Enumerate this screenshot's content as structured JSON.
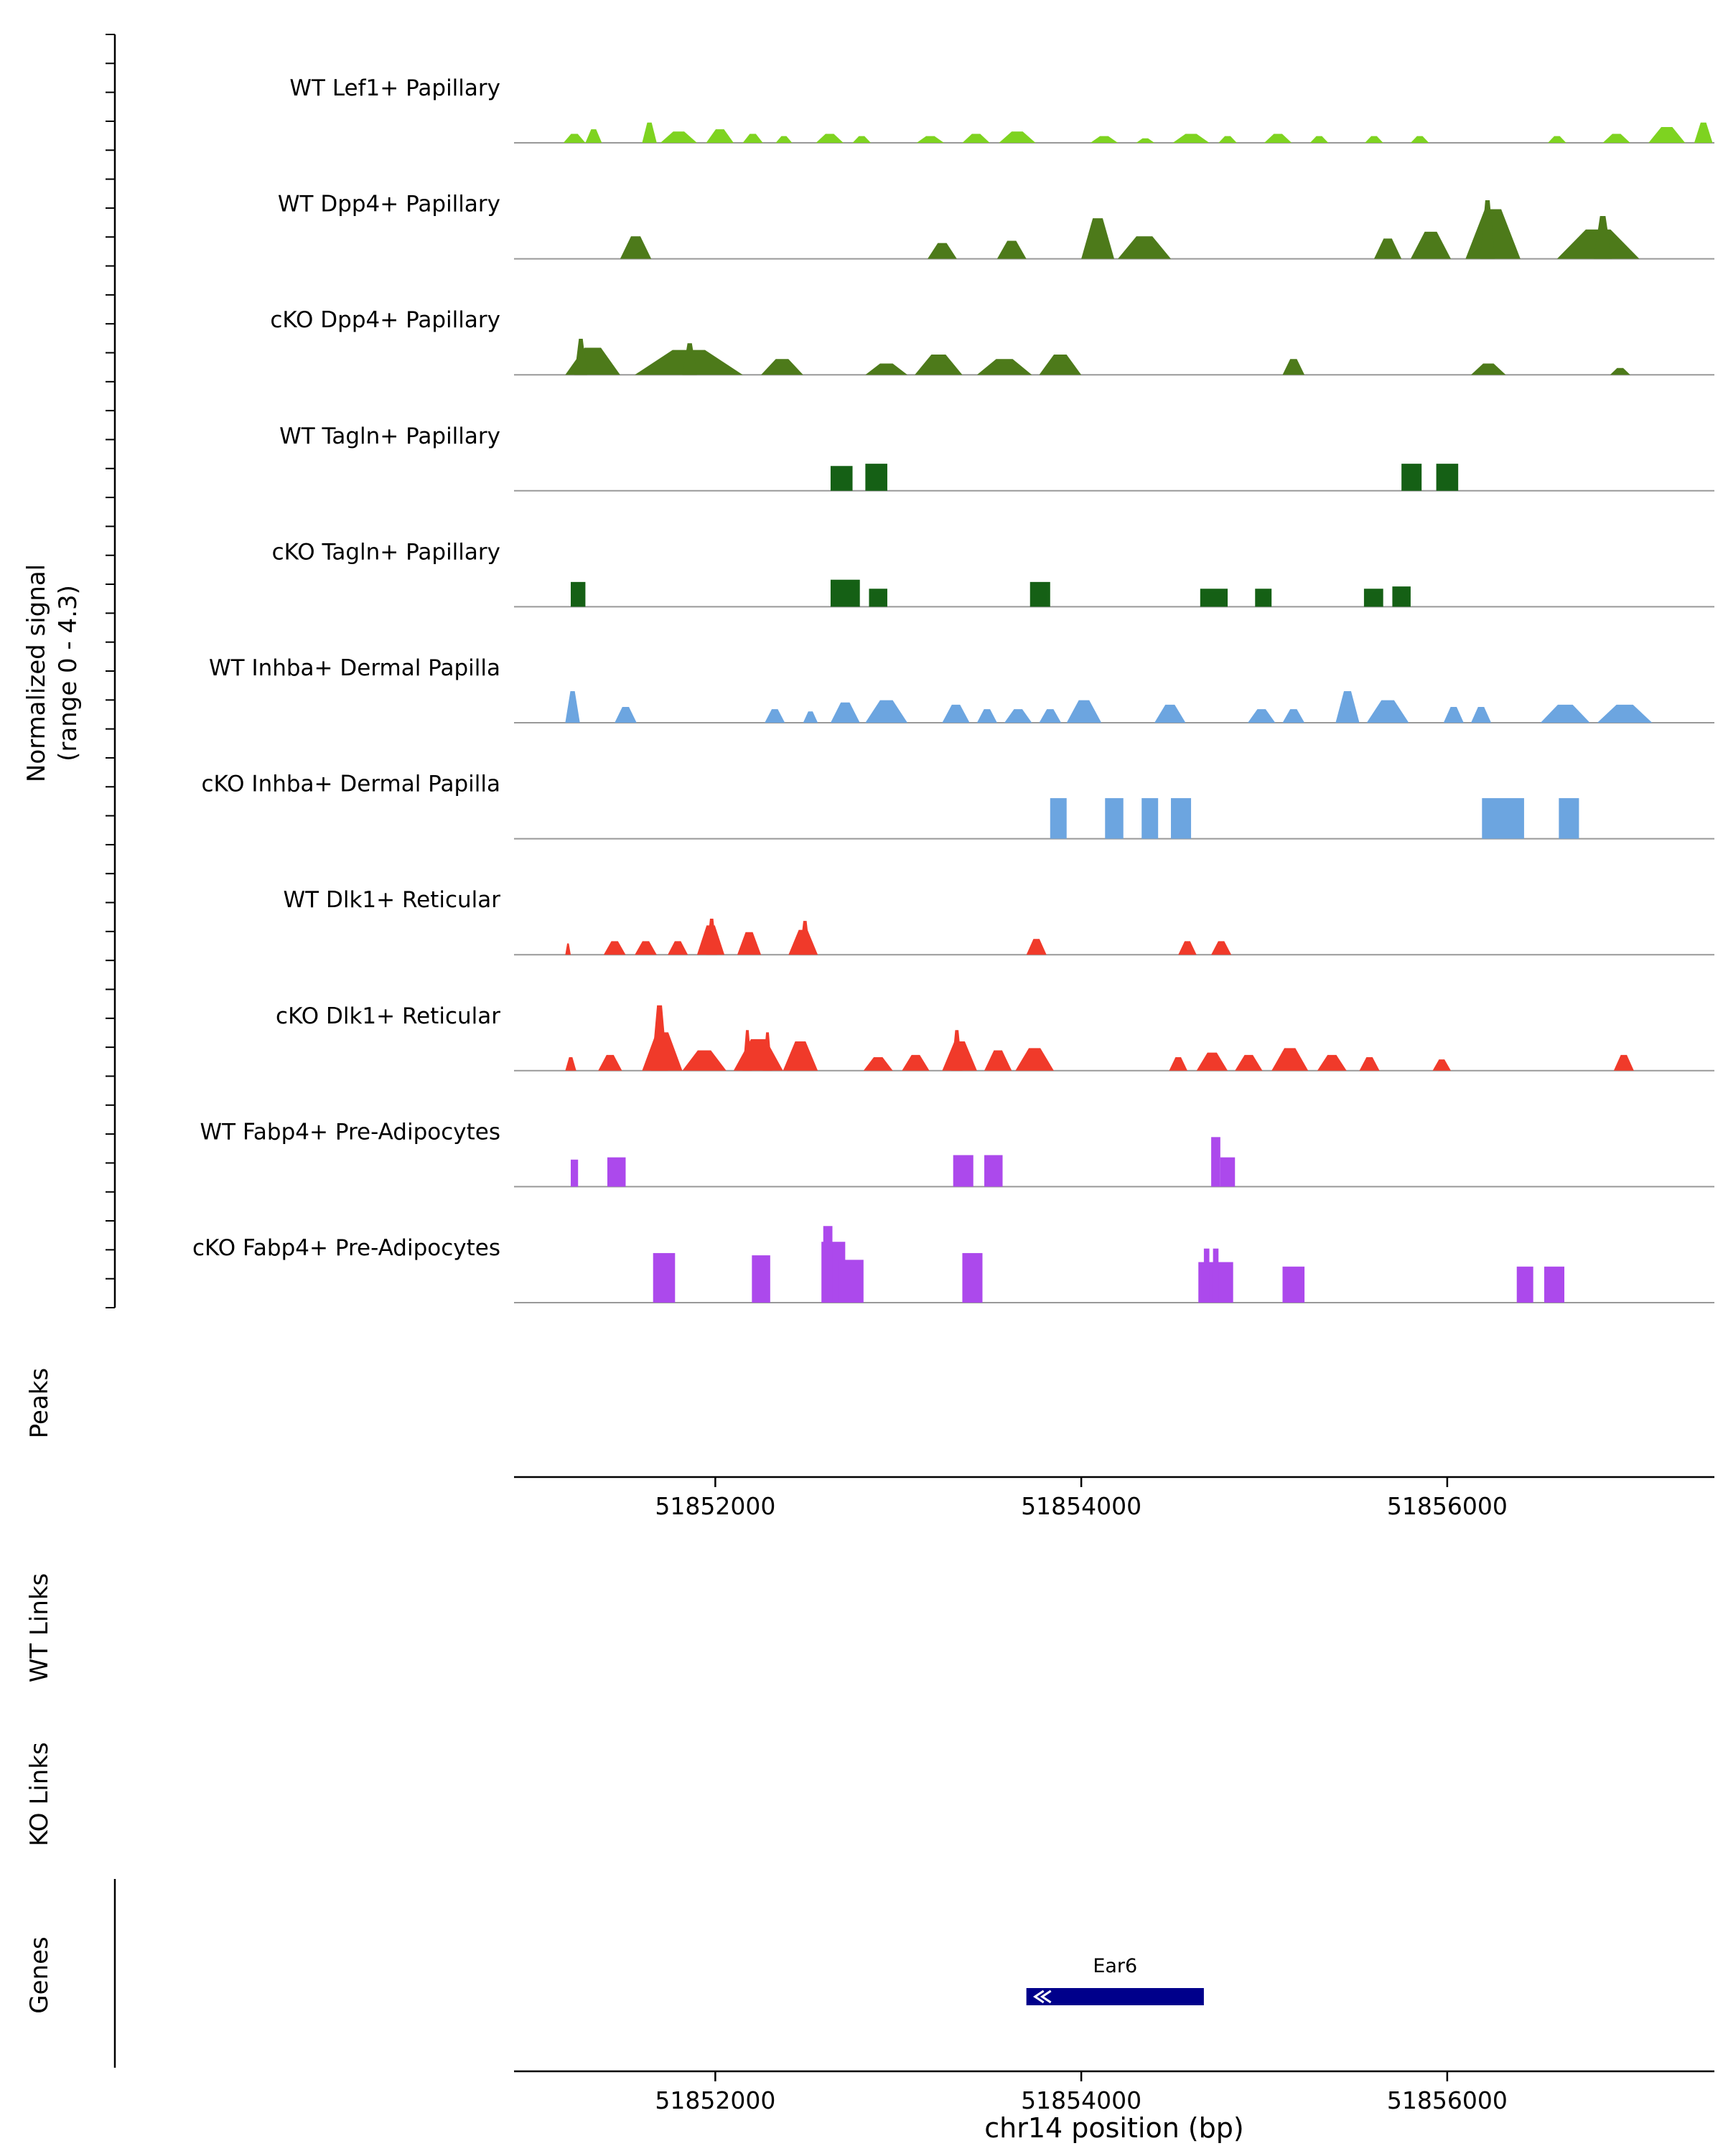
{
  "figure": {
    "y_axis_label_line1": "Normalized signal",
    "y_axis_label_line2": "(range 0 - 4.3)",
    "section_labels": {
      "peaks": "Peaks",
      "wt_links": "WT Links",
      "ko_links": "KO Links",
      "genes": "Genes"
    },
    "x_axis": {
      "label": "chr14 position (bp)",
      "tick_labels": [
        "51852000",
        "51854000",
        "51856000"
      ],
      "tick_values": [
        51852000,
        51854000,
        51856000
      ]
    }
  },
  "chart_data": {
    "type": "area",
    "title": "",
    "xlabel": "chr14 position (bp)",
    "x_domain_bp": [
      51850900,
      51857460
    ],
    "x_ticks": [
      51852000,
      51854000,
      51856000
    ],
    "signal_range": [
      0,
      4.3
    ],
    "tracks": [
      {
        "label": "WT Lef1+ Papillary",
        "color": "#7ED320",
        "style": "mound",
        "peaks": [
          [
            51851170,
            51851290,
            0.4
          ],
          [
            51851290,
            51851380,
            0.6
          ],
          [
            51851600,
            51851680,
            0.9
          ],
          [
            51851700,
            51851900,
            0.5
          ],
          [
            51851950,
            51852100,
            0.6
          ],
          [
            51852150,
            51852260,
            0.4
          ],
          [
            51852330,
            51852420,
            0.3
          ],
          [
            51852550,
            51852700,
            0.4
          ],
          [
            51852750,
            51852850,
            0.3
          ],
          [
            51853100,
            51853250,
            0.3
          ],
          [
            51853350,
            51853500,
            0.4
          ],
          [
            51853550,
            51853750,
            0.5
          ],
          [
            51854050,
            51854200,
            0.3
          ],
          [
            51854300,
            51854400,
            0.2
          ],
          [
            51854500,
            51854700,
            0.4
          ],
          [
            51854750,
            51854850,
            0.3
          ],
          [
            51855000,
            51855150,
            0.4
          ],
          [
            51855250,
            51855350,
            0.3
          ],
          [
            51855550,
            51855650,
            0.3
          ],
          [
            51855800,
            51855900,
            0.3
          ],
          [
            51856550,
            51856650,
            0.3
          ],
          [
            51856850,
            51857000,
            0.4
          ],
          [
            51857100,
            51857300,
            0.7
          ],
          [
            51857350,
            51857450,
            0.9
          ]
        ]
      },
      {
        "label": "WT Dpp4+ Papillary",
        "color": "#4D7A1A",
        "style": "mound",
        "peaks": [
          [
            51851480,
            51851650,
            1.0
          ],
          [
            51853160,
            51853320,
            0.7
          ],
          [
            51853540,
            51853700,
            0.8
          ],
          [
            51854000,
            51854180,
            1.8
          ],
          [
            51854200,
            51854490,
            1.0
          ],
          [
            51855600,
            51855750,
            0.9
          ],
          [
            51855800,
            51856020,
            1.2
          ],
          [
            51856100,
            51856400,
            2.2
          ],
          [
            51856180,
            51856260,
            2.6
          ],
          [
            51856600,
            51857050,
            1.3
          ],
          [
            51856800,
            51856900,
            1.9
          ]
        ]
      },
      {
        "label": "cKO Dpp4+ Papillary",
        "color": "#4D7A1A",
        "style": "mound",
        "peaks": [
          [
            51851180,
            51851480,
            1.2
          ],
          [
            51851230,
            51851300,
            1.6
          ],
          [
            51851560,
            51852150,
            1.1
          ],
          [
            51851820,
            51851900,
            1.4
          ],
          [
            51852250,
            51852480,
            0.7
          ],
          [
            51852820,
            51853050,
            0.5
          ],
          [
            51853090,
            51853350,
            0.9
          ],
          [
            51853430,
            51853730,
            0.7
          ],
          [
            51853770,
            51854000,
            0.9
          ],
          [
            51855100,
            51855220,
            0.7
          ],
          [
            51856130,
            51856320,
            0.5
          ],
          [
            51856890,
            51857000,
            0.3
          ]
        ]
      },
      {
        "label": "WT Tagln+ Papillary",
        "color": "#156015",
        "style": "block",
        "peaks": [
          [
            51852630,
            51852750,
            1.1
          ],
          [
            51852820,
            51852940,
            1.2
          ],
          [
            51855750,
            51855860,
            1.2
          ],
          [
            51855940,
            51856060,
            1.2
          ]
        ]
      },
      {
        "label": "cKO Tagln+ Papillary",
        "color": "#156015",
        "style": "block",
        "peaks": [
          [
            51851210,
            51851290,
            1.1
          ],
          [
            51852630,
            51852790,
            1.2
          ],
          [
            51852840,
            51852940,
            0.8
          ],
          [
            51853720,
            51853830,
            1.1
          ],
          [
            51854650,
            51854800,
            0.8
          ],
          [
            51854950,
            51855040,
            0.8
          ],
          [
            51855545,
            51855650,
            0.8
          ],
          [
            51855700,
            51855800,
            0.9
          ]
        ]
      },
      {
        "label": "WT Inhba+ Dermal Papilla",
        "color": "#6CA5E0",
        "style": "mound",
        "peaks": [
          [
            51851180,
            51851260,
            1.4
          ],
          [
            51851450,
            51851570,
            0.7
          ],
          [
            51852270,
            51852380,
            0.6
          ],
          [
            51852480,
            51852560,
            0.5
          ],
          [
            51852630,
            51852790,
            0.9
          ],
          [
            51852820,
            51853050,
            1.0
          ],
          [
            51853240,
            51853390,
            0.8
          ],
          [
            51853430,
            51853540,
            0.6
          ],
          [
            51853580,
            51853730,
            0.6
          ],
          [
            51853770,
            51853890,
            0.6
          ],
          [
            51853920,
            51854110,
            1.0
          ],
          [
            51854400,
            51854570,
            0.8
          ],
          [
            51854910,
            51855060,
            0.6
          ],
          [
            51855100,
            51855220,
            0.6
          ],
          [
            51855390,
            51855520,
            1.4
          ],
          [
            51855560,
            51855790,
            1.0
          ],
          [
            51855980,
            51856090,
            0.7
          ],
          [
            51856130,
            51856240,
            0.7
          ],
          [
            51856510,
            51856780,
            0.8
          ],
          [
            51856820,
            51857120,
            0.8
          ]
        ]
      },
      {
        "label": "cKO Inhba+ Dermal Papilla",
        "color": "#6CA5E0",
        "style": "block",
        "peaks": [
          [
            51853830,
            51853920,
            1.8
          ],
          [
            51854130,
            51854230,
            1.8
          ],
          [
            51854330,
            51854420,
            1.8
          ],
          [
            51854490,
            51854600,
            1.8
          ],
          [
            51856190,
            51856420,
            1.8
          ],
          [
            51856610,
            51856720,
            1.8
          ]
        ]
      },
      {
        "label": "WT Dlk1+ Reticular",
        "color": "#F03A2A",
        "style": "mound",
        "peaks": [
          [
            51851180,
            51851210,
            0.5
          ],
          [
            51851390,
            51851510,
            0.6
          ],
          [
            51851560,
            51851680,
            0.6
          ],
          [
            51851740,
            51851850,
            0.6
          ],
          [
            51851900,
            51852050,
            1.3
          ],
          [
            51851950,
            51852010,
            1.6
          ],
          [
            51852120,
            51852250,
            1.0
          ],
          [
            51852400,
            51852560,
            1.1
          ],
          [
            51852460,
            51852520,
            1.5
          ],
          [
            51853700,
            51853810,
            0.7
          ],
          [
            51854530,
            51854630,
            0.6
          ],
          [
            51854710,
            51854820,
            0.6
          ]
        ]
      },
      {
        "label": "cKO Dlk1+ Reticular",
        "color": "#F03A2A",
        "style": "mound",
        "peaks": [
          [
            51851180,
            51851240,
            0.6
          ],
          [
            51851360,
            51851490,
            0.7
          ],
          [
            51851600,
            51851820,
            1.7
          ],
          [
            51851650,
            51851740,
            2.9
          ],
          [
            51851820,
            51852060,
            0.9
          ],
          [
            51852100,
            51852370,
            1.4
          ],
          [
            51852150,
            51852200,
            1.8
          ],
          [
            51852260,
            51852310,
            1.7
          ],
          [
            51852370,
            51852560,
            1.3
          ],
          [
            51852810,
            51852970,
            0.6
          ],
          [
            51853020,
            51853170,
            0.7
          ],
          [
            51853240,
            51853430,
            1.3
          ],
          [
            51853290,
            51853350,
            1.8
          ],
          [
            51853470,
            51853620,
            0.9
          ],
          [
            51853640,
            51853850,
            1.0
          ],
          [
            51854480,
            51854580,
            0.6
          ],
          [
            51854630,
            51854800,
            0.8
          ],
          [
            51854840,
            51854990,
            0.7
          ],
          [
            51855040,
            51855240,
            1.0
          ],
          [
            51855290,
            51855450,
            0.7
          ],
          [
            51855520,
            51855630,
            0.6
          ],
          [
            51855920,
            51856020,
            0.5
          ],
          [
            51856910,
            51857020,
            0.7
          ]
        ]
      },
      {
        "label": "WT Fabp4+ Pre-Adipocytes",
        "color": "#AC49EC",
        "style": "block",
        "peaks": [
          [
            51851210,
            51851250,
            1.2
          ],
          [
            51851410,
            51851510,
            1.3
          ],
          [
            51853300,
            51853410,
            1.4
          ],
          [
            51853470,
            51853570,
            1.4
          ],
          [
            51854710,
            51854760,
            2.2
          ],
          [
            51854760,
            51854840,
            1.3
          ]
        ]
      },
      {
        "label": "cKO Fabp4+ Pre-Adipocytes",
        "color": "#AC49EC",
        "style": "block",
        "peaks": [
          [
            51851660,
            51851780,
            2.2
          ],
          [
            51852200,
            51852300,
            2.1
          ],
          [
            51852580,
            51852710,
            2.7
          ],
          [
            51852590,
            51852640,
            3.4
          ],
          [
            51852670,
            51852810,
            1.9
          ],
          [
            51853350,
            51853460,
            2.2
          ],
          [
            51854640,
            51854830,
            1.8
          ],
          [
            51854670,
            51854700,
            2.4
          ],
          [
            51854720,
            51854750,
            2.4
          ],
          [
            51855100,
            51855220,
            1.6
          ],
          [
            51856380,
            51856470,
            1.6
          ],
          [
            51856530,
            51856640,
            1.6
          ]
        ]
      }
    ],
    "genes": [
      {
        "name": "Ear6",
        "start_bp": 51853700,
        "end_bp": 51854670,
        "strand": "-",
        "color": "#00008B"
      }
    ]
  }
}
